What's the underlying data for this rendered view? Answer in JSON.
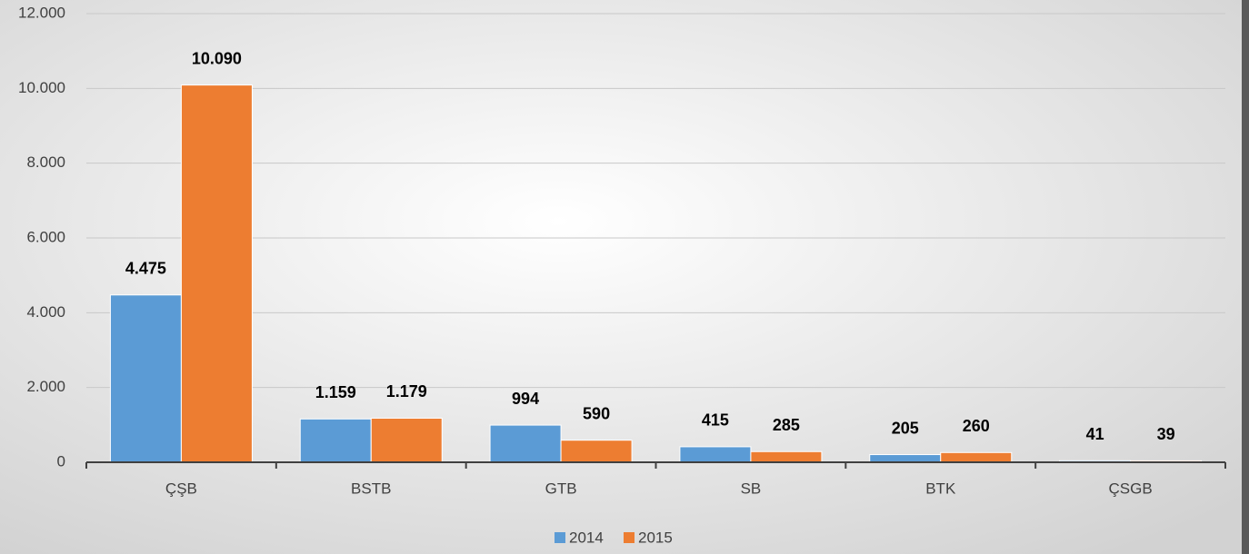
{
  "chart_data": {
    "type": "bar",
    "categories": [
      "ÇŞB",
      "BSTB",
      "GTB",
      "SB",
      "BTK",
      "ÇSGB"
    ],
    "series": [
      {
        "name": "2014",
        "color": "#5b9bd5",
        "values": [
          4475,
          1159,
          994,
          415,
          205,
          41
        ],
        "value_labels": [
          "4.475",
          "1.159",
          "994",
          "415",
          "205",
          "41"
        ]
      },
      {
        "name": "2015",
        "color": "#ed7d31",
        "values": [
          10090,
          1179,
          590,
          285,
          260,
          39
        ],
        "value_labels": [
          "10.090",
          "1.179",
          "590",
          "285",
          "260",
          "39"
        ]
      }
    ],
    "ylim": [
      0,
      12000
    ],
    "yticks": [
      0,
      {
        "value": 2000,
        "label": "2.000"
      },
      {
        "value": 4000,
        "label": "4.000"
      },
      {
        "value": 6000,
        "label": "6.000"
      },
      {
        "value": 8000,
        "label": "8.000"
      },
      {
        "value": 10000,
        "label": "10.000"
      },
      {
        "value": 12000,
        "label": "12.000"
      }
    ],
    "grid": true,
    "legend": "bottom"
  }
}
